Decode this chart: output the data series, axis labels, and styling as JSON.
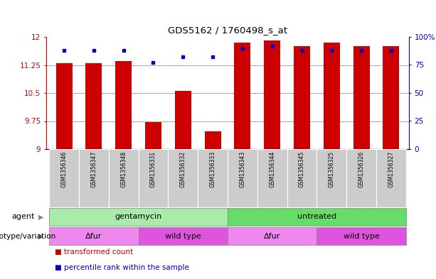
{
  "title": "GDS5162 / 1760498_s_at",
  "samples": [
    "GSM1356346",
    "GSM1356347",
    "GSM1356348",
    "GSM1356331",
    "GSM1356332",
    "GSM1356333",
    "GSM1356343",
    "GSM1356344",
    "GSM1356345",
    "GSM1356325",
    "GSM1356326",
    "GSM1356327"
  ],
  "transformed_counts": [
    11.3,
    11.3,
    11.35,
    9.72,
    10.55,
    9.48,
    11.85,
    11.9,
    11.75,
    11.85,
    11.75,
    11.75
  ],
  "percentile_ranks": [
    88,
    88,
    88,
    77,
    82,
    82,
    90,
    92,
    88,
    88,
    88,
    88
  ],
  "y_min": 9,
  "y_max": 12,
  "y_ticks": [
    9,
    9.75,
    10.5,
    11.25,
    12
  ],
  "y2_ticks": [
    0,
    25,
    50,
    75,
    100
  ],
  "bar_color": "#cc0000",
  "dot_color": "#0000cc",
  "agent_groups": [
    {
      "label": "gentamycin",
      "start": 0,
      "end": 6,
      "color": "#aaeaaa"
    },
    {
      "label": "untreated",
      "start": 6,
      "end": 12,
      "color": "#66dd66"
    }
  ],
  "genotype_groups": [
    {
      "label": "Δfur",
      "start": 0,
      "end": 3,
      "color": "#ee88ee"
    },
    {
      "label": "wild type",
      "start": 3,
      "end": 6,
      "color": "#dd55dd"
    },
    {
      "label": "Δfur",
      "start": 6,
      "end": 9,
      "color": "#ee88ee"
    },
    {
      "label": "wild type",
      "start": 9,
      "end": 12,
      "color": "#dd55dd"
    }
  ],
  "legend_items": [
    {
      "label": "transformed count",
      "color": "#cc0000"
    },
    {
      "label": "percentile rank within the sample",
      "color": "#0000cc"
    }
  ],
  "tick_label_color_left": "#cc0000",
  "tick_label_color_right": "#0000cc",
  "bar_width": 0.55,
  "sample_bg_color": "#cccccc"
}
